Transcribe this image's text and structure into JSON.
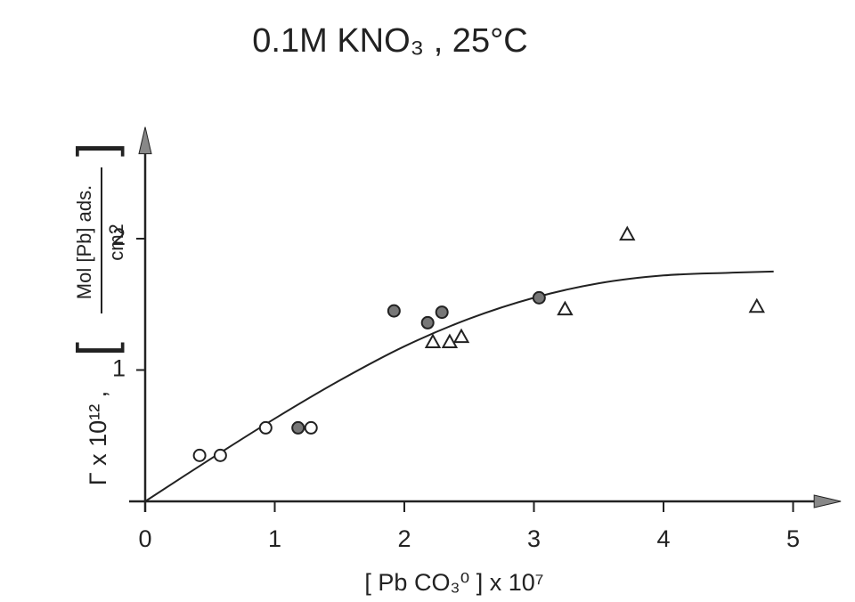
{
  "chart_data": {
    "type": "scatter",
    "title": "0.1M  KNO₃ , 25°C",
    "xlabel": {
      "text": "[ Pb CO₃⁰ ]   x 10⁷"
    },
    "ylabel": {
      "prefix": "Γ x 10¹² ,",
      "bracket_left": "[",
      "numerator": "Mol [Pb] ads.",
      "denominator": "cm2",
      "bracket_right": "]"
    },
    "xlim": [
      0,
      5.3
    ],
    "ylim": [
      0,
      2.85
    ],
    "xticks": [
      "0",
      "1",
      "2",
      "3",
      "4",
      "5"
    ],
    "yticks": [
      "1",
      "2"
    ],
    "grid": false,
    "series": [
      {
        "marker": "open-circle",
        "x": [
          0.42,
          0.58,
          0.93,
          1.28
        ],
        "y": [
          0.35,
          0.35,
          0.56,
          0.56
        ]
      },
      {
        "marker": "filled-circle",
        "x": [
          1.18,
          1.92,
          2.18,
          2.29,
          3.04
        ],
        "y": [
          0.56,
          1.45,
          1.36,
          1.44,
          1.55
        ]
      },
      {
        "marker": "open-triangle",
        "x": [
          2.22,
          2.35,
          2.44,
          3.24,
          3.72,
          4.72
        ],
        "y": [
          1.21,
          1.21,
          1.25,
          1.46,
          2.03,
          1.48
        ]
      }
    ],
    "fit_curve": {
      "marker": "line",
      "x": [
        0,
        0.5,
        1.0,
        1.5,
        2.0,
        2.5,
        3.0,
        3.5,
        4.0,
        4.5,
        4.85
      ],
      "y": [
        0,
        0.32,
        0.63,
        0.92,
        1.18,
        1.39,
        1.55,
        1.66,
        1.72,
        1.74,
        1.75
      ]
    },
    "colors": {
      "ink": "#222222",
      "filled_marker": "#777777",
      "background": "#ffffff"
    }
  }
}
